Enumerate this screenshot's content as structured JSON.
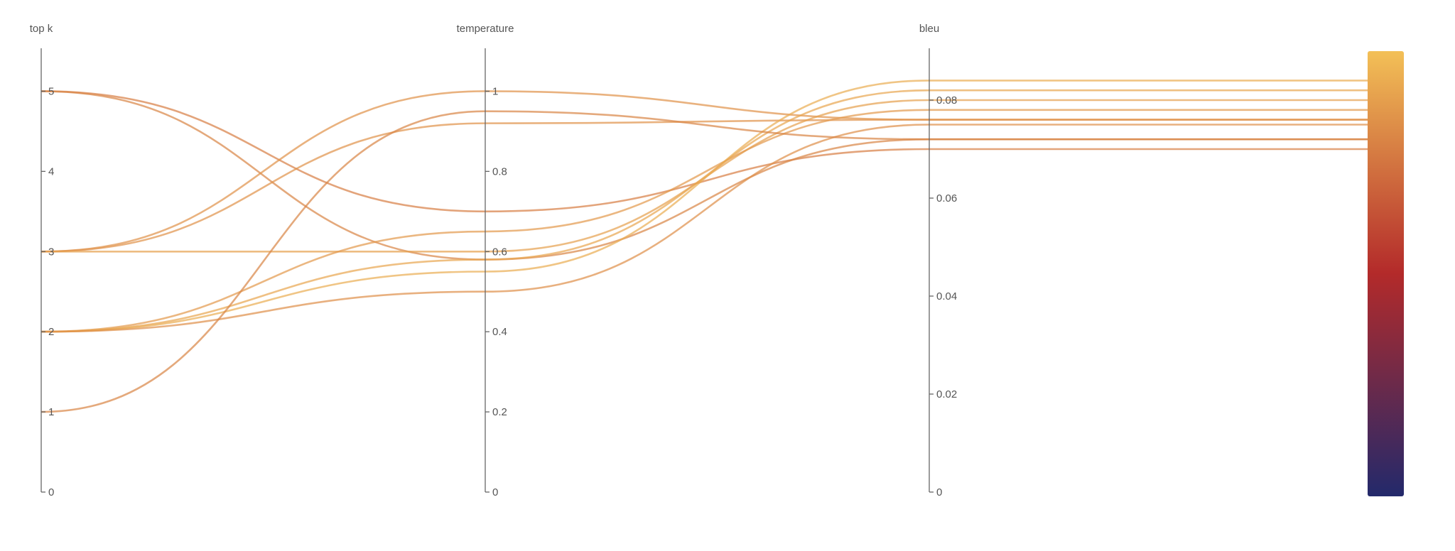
{
  "chart_data": {
    "type": "parallel-coordinates",
    "axes": [
      {
        "key": "top_k",
        "label": "top k",
        "range": [
          0,
          5.5
        ],
        "ticks": [
          0,
          1,
          2,
          3,
          4,
          5
        ],
        "tick_labels": [
          "0",
          "1",
          "2",
          "3",
          "4",
          "5"
        ]
      },
      {
        "key": "temperature",
        "label": "temperature",
        "range": [
          0,
          1.1
        ],
        "ticks": [
          0,
          0.2,
          0.4,
          0.6,
          0.8,
          1
        ],
        "tick_labels": [
          "0",
          "0.2",
          "0.4",
          "0.6",
          "0.8",
          "1"
        ]
      },
      {
        "key": "bleu",
        "label": "bleu",
        "range": [
          0,
          0.09
        ],
        "ticks": [
          0,
          0.02,
          0.04,
          0.06,
          0.08
        ],
        "tick_labels": [
          "0",
          "0.02",
          "0.04",
          "0.06",
          "0.08"
        ]
      }
    ],
    "color_key": "bleu",
    "colorscale": {
      "range": [
        0,
        0.09
      ],
      "stops": [
        [
          "0",
          "#23296b"
        ],
        [
          "0.5",
          "#b32a2a"
        ],
        [
          "1",
          "#f3c057"
        ]
      ]
    },
    "rows": [
      {
        "top_k": 5,
        "temperature": 0.7,
        "bleu": 0.07
      },
      {
        "top_k": 5,
        "temperature": 0.58,
        "bleu": 0.072
      },
      {
        "top_k": 3,
        "temperature": 1.0,
        "bleu": 0.076
      },
      {
        "top_k": 3,
        "temperature": 0.92,
        "bleu": 0.076
      },
      {
        "top_k": 3,
        "temperature": 0.6,
        "bleu": 0.08
      },
      {
        "top_k": 2,
        "temperature": 0.65,
        "bleu": 0.078
      },
      {
        "top_k": 2,
        "temperature": 0.55,
        "bleu": 0.084
      },
      {
        "top_k": 2,
        "temperature": 0.58,
        "bleu": 0.082
      },
      {
        "top_k": 2,
        "temperature": 0.5,
        "bleu": 0.075
      },
      {
        "top_k": 1,
        "temperature": 0.95,
        "bleu": 0.072
      }
    ]
  }
}
